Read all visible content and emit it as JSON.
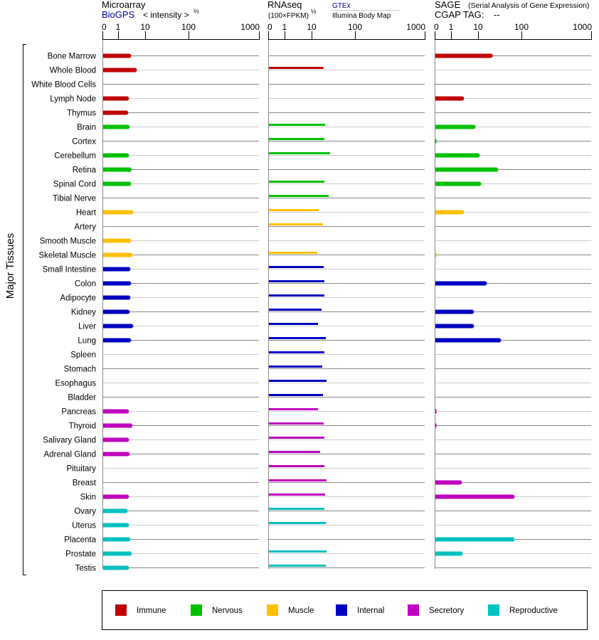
{
  "colors": {
    "immune": "#c00000",
    "nervous": "#00c000",
    "muscle": "#ffc000",
    "internal": "#0000c0",
    "secretory": "#c000c0",
    "reproductive": "#00c0c0",
    "link": "#0000a0"
  },
  "headers": {
    "microarray": {
      "title": "Microarray",
      "source": "BioGPS",
      "unit": "< intensity >",
      "unit_exp": "⅔"
    },
    "rnaseq": {
      "title": "RNAseq",
      "unit": "(100×FPKM)",
      "unit_exp": "½",
      "source1": "GTEx",
      "source2": "Illumina Body Map"
    },
    "sage": {
      "title": "SAGE",
      "subtitle": "(Serial Analysis of Gene Expression)",
      "tag_label": "CGAP TAG:",
      "tag_value": "--"
    }
  },
  "y_group_label": "Major Tissues",
  "chart_data": {
    "type": "bar",
    "orientation": "horizontal",
    "axis_ticks": [
      "0",
      "1",
      "10",
      "100",
      "1000"
    ],
    "tick_values": [
      0,
      1,
      10,
      100,
      1000
    ],
    "xlim": [
      0,
      1000
    ],
    "panels": [
      "microarray",
      "rnaseq",
      "sage"
    ],
    "legend_position": "bottom",
    "legend": [
      {
        "key": "immune",
        "label": "Immune"
      },
      {
        "key": "nervous",
        "label": "Nervous"
      },
      {
        "key": "muscle",
        "label": "Muscle"
      },
      {
        "key": "internal",
        "label": "Internal"
      },
      {
        "key": "secretory",
        "label": "Secretory"
      },
      {
        "key": "reproductive",
        "label": "Reproductive"
      }
    ],
    "tissues": [
      {
        "name": "Bone Marrow",
        "cat": "immune",
        "microarray": 2.75,
        "rnaseq": null,
        "sage": 20.5
      },
      {
        "name": "Whole Blood",
        "cat": "immune",
        "microarray": 4.47,
        "rnaseq": 18.8,
        "sage": null
      },
      {
        "name": "White Blood Cells",
        "cat": "immune",
        "microarray": null,
        "rnaseq": null,
        "sage": null
      },
      {
        "name": "Lymph Node",
        "cat": "immune",
        "microarray": 2.29,
        "rnaseq": null,
        "sage": 2.75
      },
      {
        "name": "Thymus",
        "cat": "immune",
        "microarray": 2.16,
        "rnaseq": null,
        "sage": null
      },
      {
        "name": "Brain",
        "cat": "nervous",
        "microarray": 2.44,
        "rnaseq": 20.5,
        "sage": 7.3
      },
      {
        "name": "Cortex",
        "cat": "nervous",
        "microarray": null,
        "rnaseq": 19.7,
        "sage": 0.07
      },
      {
        "name": "Cerebellum",
        "cat": "nervous",
        "microarray": 2.29,
        "rnaseq": 26.7,
        "sage": 10.3
      },
      {
        "name": "Retina",
        "cat": "nervous",
        "microarray": 2.85,
        "rnaseq": null,
        "sage": 27.4
      },
      {
        "name": "Spinal Cord",
        "cat": "nervous",
        "microarray": 2.75,
        "rnaseq": 19.7,
        "sage": 11.1
      },
      {
        "name": "Tibial Nerve",
        "cat": "nervous",
        "microarray": null,
        "rnaseq": 24.7,
        "sage": null
      },
      {
        "name": "Heart",
        "cat": "muscle",
        "microarray": 3.3,
        "rnaseq": 14.6,
        "sage": 2.75
      },
      {
        "name": "Artery",
        "cat": "muscle",
        "microarray": null,
        "rnaseq": 18.3,
        "sage": null
      },
      {
        "name": "Smooth Muscle",
        "cat": "muscle",
        "microarray": 2.75,
        "rnaseq": null,
        "sage": null
      },
      {
        "name": "Skeletal Muscle",
        "cat": "muscle",
        "microarray": 3.1,
        "rnaseq": 13.5,
        "sage": 0.07
      },
      {
        "name": "Small Intestine",
        "cat": "internal",
        "microarray": 2.59,
        "rnaseq": 19.0,
        "sage": null
      },
      {
        "name": "Colon",
        "cat": "internal",
        "microarray": 2.75,
        "rnaseq": 19.7,
        "sage": 15.0
      },
      {
        "name": "Adipocyte",
        "cat": "internal",
        "microarray": 2.59,
        "rnaseq": 19.7,
        "sage": null
      },
      {
        "name": "Kidney",
        "cat": "internal",
        "microarray": 2.44,
        "rnaseq": 17.0,
        "sage": 6.4
      },
      {
        "name": "Liver",
        "cat": "internal",
        "microarray": 3.3,
        "rnaseq": 14.1,
        "sage": 6.4
      },
      {
        "name": "Lung",
        "cat": "internal",
        "microarray": 2.75,
        "rnaseq": 21.3,
        "sage": 31.8
      },
      {
        "name": "Spleen",
        "cat": "internal",
        "microarray": null,
        "rnaseq": 19.7,
        "sage": null
      },
      {
        "name": "Stomach",
        "cat": "internal",
        "microarray": null,
        "rnaseq": 17.6,
        "sage": null
      },
      {
        "name": "Esophagus",
        "cat": "internal",
        "microarray": null,
        "rnaseq": 22.1,
        "sage": null
      },
      {
        "name": "Bladder",
        "cat": "internal",
        "microarray": null,
        "rnaseq": 18.3,
        "sage": null
      },
      {
        "name": "Pancreas",
        "cat": "secretory",
        "microarray": 2.29,
        "rnaseq": 14.1,
        "sage": 0.07
      },
      {
        "name": "Thyroid",
        "cat": "secretory",
        "microarray": 3.1,
        "rnaseq": 19.0,
        "sage": 0.07
      },
      {
        "name": "Salivary Gland",
        "cat": "secretory",
        "microarray": 2.29,
        "rnaseq": 19.7,
        "sage": null
      },
      {
        "name": "Adrenal Gland",
        "cat": "secretory",
        "microarray": 2.44,
        "rnaseq": 15.7,
        "sage": null
      },
      {
        "name": "Pituitary",
        "cat": "secretory",
        "microarray": null,
        "rnaseq": 19.7,
        "sage": null
      },
      {
        "name": "Breast",
        "cat": "secretory",
        "microarray": null,
        "rnaseq": 22.1,
        "sage": 2.29
      },
      {
        "name": "Skin",
        "cat": "secretory",
        "microarray": 2.29,
        "rnaseq": 20.5,
        "sage": 65.3
      },
      {
        "name": "Ovary",
        "cat": "reproductive",
        "microarray": 2.03,
        "rnaseq": 19.7,
        "sage": null
      },
      {
        "name": "Uterus",
        "cat": "reproductive",
        "microarray": 2.29,
        "rnaseq": 21.3,
        "sage": null
      },
      {
        "name": "Placenta",
        "cat": "reproductive",
        "microarray": 2.59,
        "rnaseq": null,
        "sage": 65.3
      },
      {
        "name": "Prostate",
        "cat": "reproductive",
        "microarray": 2.92,
        "rnaseq": 22.1,
        "sage": 2.44
      },
      {
        "name": "Testis",
        "cat": "reproductive",
        "microarray": 2.29,
        "rnaseq": 21.3,
        "sage": null
      }
    ]
  }
}
